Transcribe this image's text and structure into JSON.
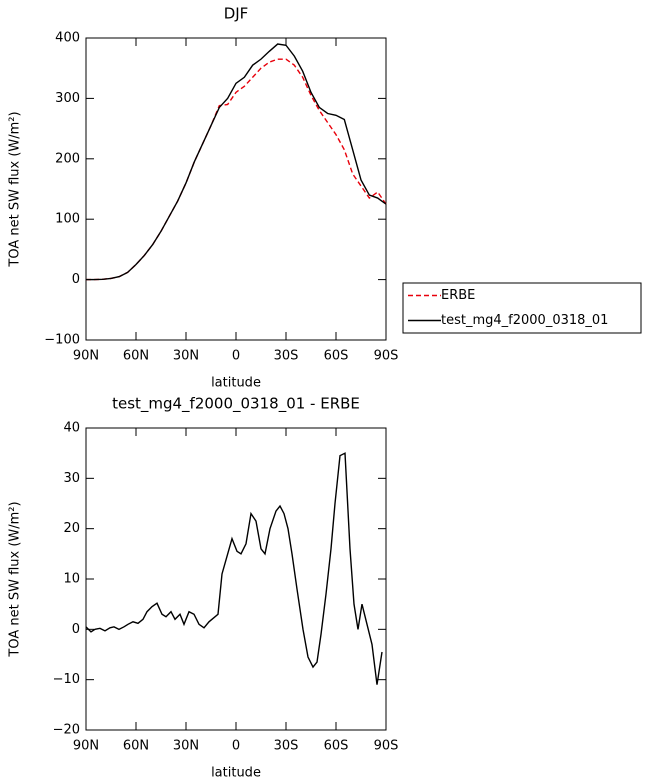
{
  "chart_data": [
    {
      "type": "line",
      "title": "DJF",
      "xlabel": "latitude",
      "ylabel": "TOA net SW flux (W/m²)",
      "x": [
        90,
        85,
        80,
        75,
        70,
        65,
        60,
        55,
        50,
        45,
        40,
        35,
        30,
        25,
        20,
        15,
        10,
        5,
        0,
        -5,
        -10,
        -15,
        -20,
        -25,
        -30,
        -35,
        -40,
        -45,
        -50,
        -55,
        -60,
        -65,
        -70,
        -75,
        -80,
        -85,
        -90
      ],
      "series": [
        {
          "name": "ERBE",
          "color": "#e8000b",
          "dash": true,
          "values": [
            0,
            0,
            0.5,
            2,
            5,
            12,
            25,
            40,
            58,
            80,
            105,
            130,
            160,
            195,
            225,
            255,
            288,
            290,
            310,
            320,
            335,
            350,
            360,
            365,
            365,
            355,
            335,
            305,
            280,
            260,
            240,
            215,
            175,
            155,
            135,
            145,
            125
          ]
        },
        {
          "name": "test_mg4_f2000_0318_01",
          "color": "#000000",
          "dash": false,
          "values": [
            0,
            0,
            0.5,
            2,
            5,
            12,
            25,
            40,
            58,
            80,
            105,
            130,
            160,
            195,
            225,
            255,
            285,
            300,
            325,
            335,
            355,
            365,
            378,
            390,
            388,
            370,
            345,
            310,
            285,
            275,
            272,
            265,
            215,
            165,
            140,
            135,
            125
          ]
        }
      ],
      "xlim": [
        90,
        -90
      ],
      "xticks": [
        {
          "value": 90,
          "label": "90N"
        },
        {
          "value": 60,
          "label": "60N"
        },
        {
          "value": 30,
          "label": "30N"
        },
        0,
        {
          "value": -30,
          "label": "30S"
        },
        {
          "value": -60,
          "label": "60S"
        },
        {
          "value": -90,
          "label": "90S"
        }
      ],
      "ylim": [
        -100,
        400
      ],
      "yticks": [
        {
          "value": -100,
          "label": "−100"
        },
        0,
        100,
        200,
        300,
        400
      ],
      "legend": "right"
    },
    {
      "type": "line",
      "title": "test_mg4_f2000_0318_01 - ERBE",
      "xlabel": "latitude",
      "ylabel": "TOA net SW flux (W/m²)",
      "x": [
        90,
        87,
        84.6,
        81.6,
        78.6,
        75.6,
        73.2,
        70.2,
        67.2,
        64.8,
        61.8,
        58.8,
        55.8,
        53.4,
        50.4,
        47.4,
        44.4,
        42,
        39,
        36.6,
        33.6,
        31.2,
        28.2,
        25.2,
        22.2,
        19.2,
        16.2,
        10.8,
        8.4,
        5.4,
        2.4,
        -0.6,
        -3,
        -6,
        -9,
        -12,
        -15,
        -17.4,
        -20.4,
        -24,
        -26.4,
        -28.8,
        -31.2,
        -33.6,
        -36.6,
        -40.2,
        -43.2,
        -46.2,
        -48.6,
        -51,
        -54,
        -57,
        -59.4,
        -62.4,
        -65.4,
        -68.4,
        -70.8,
        -73.2,
        -75.6,
        -78.6,
        -81.6,
        -84.6,
        -87.6
      ],
      "series": [
        {
          "color": "#000000",
          "dash": false,
          "values": [
            0.5,
            -0.5,
            0,
            0.2,
            -0.3,
            0.3,
            0.5,
            0,
            0.5,
            1,
            1.5,
            1.2,
            2,
            3.5,
            4.5,
            5.2,
            3,
            2.5,
            3.5,
            2,
            3,
            1,
            3.5,
            3,
            1,
            0.3,
            1.5,
            3,
            11,
            14.5,
            18,
            15.5,
            15,
            17,
            23,
            21.5,
            16,
            15,
            20,
            23.5,
            24.5,
            23,
            20,
            15,
            8,
            0,
            -5.5,
            -7.5,
            -6.5,
            -1,
            7,
            16,
            25,
            34.5,
            35,
            16,
            5,
            0,
            5,
            1,
            -3,
            -11,
            -4.5
          ]
        }
      ],
      "xlim": [
        90,
        -90
      ],
      "xticks": [
        {
          "value": 90,
          "label": "90N"
        },
        {
          "value": 60,
          "label": "60N"
        },
        {
          "value": 30,
          "label": "30N"
        },
        0,
        {
          "value": -30,
          "label": "30S"
        },
        {
          "value": -60,
          "label": "60S"
        },
        {
          "value": -90,
          "label": "90S"
        }
      ],
      "ylim": [
        -20,
        40
      ],
      "yticks": [
        {
          "value": -20,
          "label": "−20"
        },
        {
          "value": -10,
          "label": "−10"
        },
        0,
        10,
        20,
        30,
        40
      ]
    }
  ]
}
